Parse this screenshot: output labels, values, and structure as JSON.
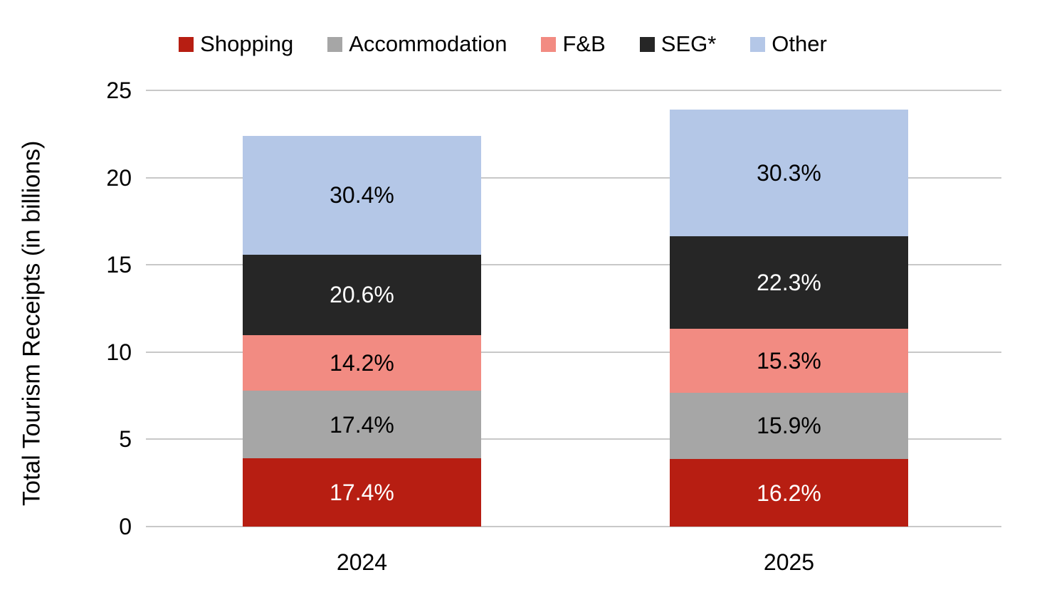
{
  "chart_data": {
    "type": "bar",
    "stacked": true,
    "title": "",
    "ylabel": "Total Tourism Receipts (in billions)",
    "xlabel": "",
    "ylim": [
      0,
      25
    ],
    "yticks": [
      "0",
      "5",
      "10",
      "15",
      "20",
      "25"
    ],
    "grid": true,
    "legend_position": "top",
    "categories": [
      "2024",
      "2025"
    ],
    "totals": [
      22.4,
      23.9
    ],
    "series": [
      {
        "name": "Shopping",
        "color": "#b71e12",
        "label_color": "#ffffff",
        "percentages": [
          17.4,
          16.2
        ],
        "labels": [
          "17.4%",
          "16.2%"
        ],
        "values": [
          3.9,
          3.87
        ]
      },
      {
        "name": "Accommodation",
        "color": "#a6a6a6",
        "label_color": "#000000",
        "percentages": [
          17.4,
          15.9
        ],
        "labels": [
          "17.4%",
          "15.9%"
        ],
        "values": [
          3.9,
          3.8
        ]
      },
      {
        "name": "F&B",
        "color": "#f28b82",
        "label_color": "#000000",
        "percentages": [
          14.2,
          15.3
        ],
        "labels": [
          "14.2%",
          "15.3%"
        ],
        "values": [
          3.18,
          3.66
        ]
      },
      {
        "name": "SEG*",
        "color": "#262626",
        "label_color": "#ffffff",
        "percentages": [
          20.6,
          22.3
        ],
        "labels": [
          "20.6%",
          "22.3%"
        ],
        "values": [
          4.61,
          5.33
        ]
      },
      {
        "name": "Other",
        "color": "#b4c7e7",
        "label_color": "#000000",
        "percentages": [
          30.4,
          30.3
        ],
        "labels": [
          "30.4%",
          "30.3%"
        ],
        "values": [
          6.81,
          7.24
        ]
      }
    ],
    "gridline_color": "#c8c8c8"
  }
}
